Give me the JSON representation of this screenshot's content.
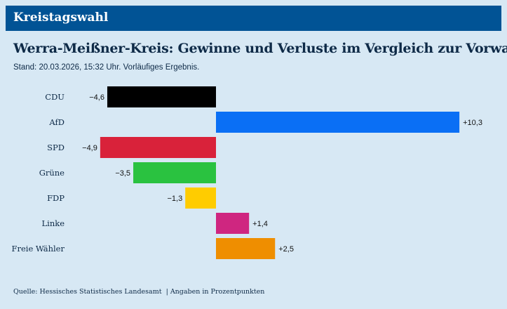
{
  "header": {
    "title": "Kreistagswahl"
  },
  "title": "Werra-Meißner-Kreis: Gewinne und Verluste im Vergleich zur Vorwahl",
  "subtitle": "Stand: 20.03.2026, 15:32 Uhr. Vorläufiges Ergebnis.",
  "footer": {
    "source": "Quelle: Hessisches Statistisches Landesamt",
    "unit": "Angaben in Prozentpunkten"
  },
  "chart_data": {
    "type": "bar",
    "orientation": "horizontal",
    "categories": [
      "CDU",
      "AfD",
      "SPD",
      "Grüne",
      "FDP",
      "Linke",
      "Freie Wähler"
    ],
    "values": [
      -4.6,
      10.3,
      -4.9,
      -3.5,
      -1.3,
      1.4,
      2.5
    ],
    "labels": [
      "−4,6",
      "+10,3",
      "−4,9",
      "−3,5",
      "−1,3",
      "+1,4",
      "+2,5"
    ],
    "colors": [
      "#000000",
      "#0a6ff5",
      "#d9223a",
      "#2ac240",
      "#ffcc00",
      "#cf2680",
      "#ef8e00"
    ],
    "xlim": [
      -4.9,
      10.3
    ],
    "grid": false
  }
}
